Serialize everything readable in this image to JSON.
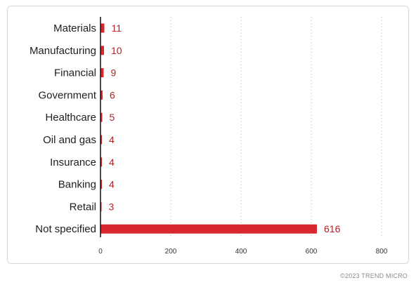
{
  "chart_data": {
    "type": "bar",
    "orientation": "horizontal",
    "title": "",
    "xlabel": "",
    "ylabel": "",
    "categories": [
      "Materials",
      "Manufacturing",
      "Financial",
      "Government",
      "Healthcare",
      "Oil and gas",
      "Insurance",
      "Banking",
      "Retail",
      "Not specified"
    ],
    "values": [
      11,
      10,
      9,
      6,
      5,
      4,
      4,
      4,
      3,
      616
    ],
    "value_labels": [
      "11",
      "10",
      "9",
      "6",
      "5",
      "4",
      "4",
      "4",
      "3",
      "616"
    ],
    "xlim": [
      0,
      800
    ],
    "x_ticks": [
      "0",
      "200",
      "400",
      "600",
      "800"
    ],
    "grid": "vertical dotted",
    "bar_color": "#d7272f"
  },
  "footer": {
    "copyright": "©2023 TREND MICRO"
  }
}
